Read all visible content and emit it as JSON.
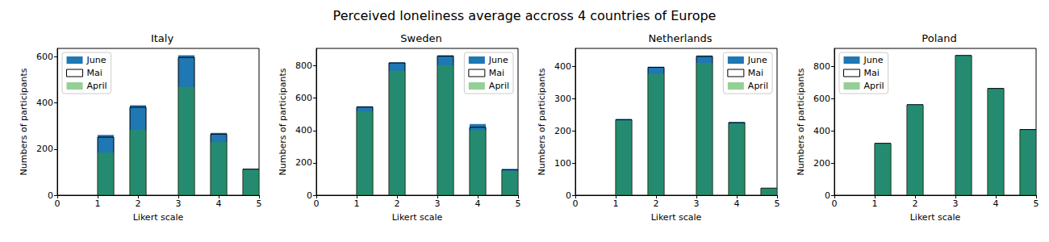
{
  "title": "Perceived loneliness average accross 4 countries of Europe",
  "chart_data": [
    {
      "type": "histogram",
      "title": "Italy",
      "x_label": "Likert scale",
      "y_label": "Numbers of participants",
      "bins": [
        1,
        1.4,
        1.8,
        2.2,
        2.6,
        3,
        3.4,
        3.8,
        4.2,
        4.6,
        5
      ],
      "xlim": [
        0,
        5
      ],
      "xticks": [
        0,
        1,
        2,
        3,
        4,
        5
      ],
      "ylim": [
        0,
        637
      ],
      "yticks": [
        0,
        200,
        400,
        600
      ],
      "grid": false,
      "legend": "upper left",
      "series": [
        {
          "name": "June",
          "color": "#1f77b4",
          "values": [
            262,
            0,
            390,
            0,
            0,
            607,
            0,
            270,
            0,
            115
          ]
        },
        {
          "name": "Mai",
          "type": "outline",
          "color": "#000000",
          "values": [
            252,
            0,
            382,
            0,
            0,
            598,
            0,
            265,
            0,
            113
          ]
        },
        {
          "name": "April",
          "color": "#2ca02c",
          "values": [
            185,
            0,
            283,
            0,
            0,
            470,
            0,
            230,
            0,
            110
          ]
        }
      ]
    },
    {
      "type": "histogram",
      "title": "Sweden",
      "x_label": "Likert scale",
      "y_label": "Numbers of participants",
      "bins": [
        1,
        1.4,
        1.8,
        2.2,
        2.6,
        3,
        3.4,
        3.8,
        4.2,
        4.6,
        5
      ],
      "xlim": [
        0,
        5
      ],
      "xticks": [
        0,
        1,
        2,
        3,
        4,
        5
      ],
      "ylim": [
        0,
        908
      ],
      "yticks": [
        0,
        200,
        400,
        600,
        800
      ],
      "grid": false,
      "legend": "upper right",
      "series": [
        {
          "name": "June",
          "color": "#1f77b4",
          "values": [
            550,
            0,
            822,
            0,
            0,
            865,
            0,
            440,
            0,
            162
          ]
        },
        {
          "name": "Mai",
          "type": "outline",
          "color": "#000000",
          "values": [
            545,
            0,
            818,
            0,
            0,
            860,
            0,
            420,
            0,
            158
          ]
        },
        {
          "name": "April",
          "color": "#2ca02c",
          "values": [
            520,
            0,
            770,
            0,
            0,
            805,
            0,
            400,
            0,
            150
          ]
        }
      ]
    },
    {
      "type": "histogram",
      "title": "Netherlands",
      "x_label": "Likert scale",
      "y_label": "Numbers of participants",
      "bins": [
        1,
        1.4,
        1.8,
        2.2,
        2.6,
        3,
        3.4,
        3.8,
        4.2,
        4.6,
        5
      ],
      "xlim": [
        0,
        5
      ],
      "xticks": [
        0,
        1,
        2,
        3,
        4,
        5
      ],
      "ylim": [
        0,
        457
      ],
      "yticks": [
        0,
        100,
        200,
        300,
        400
      ],
      "grid": false,
      "legend": "upper right",
      "series": [
        {
          "name": "June",
          "color": "#1f77b4",
          "values": [
            237,
            0,
            400,
            0,
            0,
            435,
            0,
            228,
            0,
            22
          ]
        },
        {
          "name": "Mai",
          "type": "outline",
          "color": "#000000",
          "values": [
            235,
            0,
            398,
            0,
            0,
            432,
            0,
            226,
            0,
            22
          ]
        },
        {
          "name": "April",
          "color": "#2ca02c",
          "values": [
            233,
            0,
            378,
            0,
            0,
            412,
            0,
            222,
            0,
            21
          ]
        }
      ]
    },
    {
      "type": "histogram",
      "title": "Poland",
      "x_label": "Likert scale",
      "y_label": "Numbers of participants",
      "bins": [
        1,
        1.4,
        1.8,
        2.2,
        2.6,
        3,
        3.4,
        3.8,
        4.2,
        4.6,
        5
      ],
      "xlim": [
        0,
        5
      ],
      "xticks": [
        0,
        1,
        2,
        3,
        4,
        5
      ],
      "ylim": [
        0,
        912
      ],
      "yticks": [
        0,
        200,
        400,
        600,
        800
      ],
      "grid": false,
      "legend": "upper left",
      "series": [
        {
          "name": "June",
          "color": "#1f77b4",
          "values": [
            325,
            0,
            565,
            0,
            0,
            870,
            0,
            665,
            0,
            410
          ]
        },
        {
          "name": "Mai",
          "type": "outline",
          "color": "#000000",
          "values": [
            322,
            0,
            562,
            0,
            0,
            868,
            0,
            663,
            0,
            408
          ]
        },
        {
          "name": "April",
          "color": "#2ca02c",
          "values": [
            320,
            0,
            560,
            0,
            0,
            865,
            0,
            660,
            0,
            405
          ]
        }
      ]
    }
  ]
}
